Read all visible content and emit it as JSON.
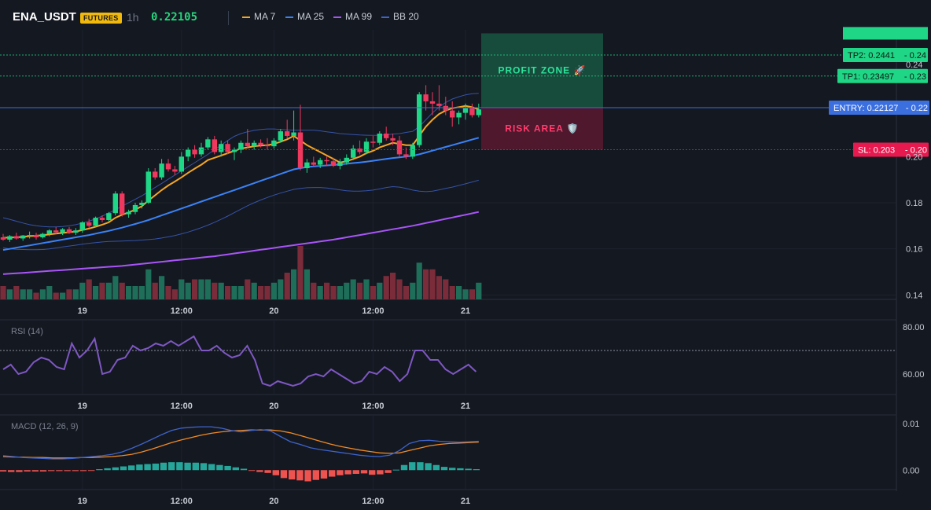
{
  "header": {
    "symbol": "ENA_USDT",
    "badge": "FUTURES",
    "timeframe": "1h",
    "price": "0.22105",
    "indicators": [
      {
        "label": "MA 7",
        "color": "#f5a623"
      },
      {
        "label": "MA 25",
        "color": "#3b82f6"
      },
      {
        "label": "MA 99",
        "color": "#a855f7"
      },
      {
        "label": "BB 20",
        "color": "#3f63c9"
      }
    ]
  },
  "colors": {
    "background": "#141821",
    "up": "#1fd586",
    "down": "#f0385f",
    "vol_up": "#1e6e5a",
    "vol_down": "#7a2c3a",
    "ma7": "#f5a623",
    "ma25": "#3b82f6",
    "ma99": "#a855f7",
    "bb": "#3f63c9",
    "rsi": "#7e57c2",
    "macd": "#3f63c9",
    "signal": "#f08a24",
    "hist_up": "#26a69a",
    "hist_down": "#ef5350",
    "tp": "#1fd586",
    "entry": "#3b6fe0",
    "sl": "#e8194f"
  },
  "chart_data": {
    "type": "candlestick",
    "x_ticks": [
      "19",
      "12:00",
      "20",
      "12:00",
      "21"
    ],
    "price_axis": {
      "ticks": [
        0.14,
        0.16,
        0.18,
        0.2,
        0.22,
        0.23,
        0.24
      ],
      "range": [
        0.135,
        0.255
      ]
    },
    "candles": [
      [
        0.165,
        0.1665,
        0.1635,
        0.164
      ],
      [
        0.164,
        0.166,
        0.163,
        0.1655
      ],
      [
        0.1655,
        0.167,
        0.164,
        0.1645
      ],
      [
        0.1645,
        0.166,
        0.1635,
        0.1658
      ],
      [
        0.1658,
        0.1675,
        0.1645,
        0.166
      ],
      [
        0.166,
        0.167,
        0.164,
        0.165
      ],
      [
        0.165,
        0.167,
        0.1645,
        0.1665
      ],
      [
        0.1665,
        0.1685,
        0.1655,
        0.168
      ],
      [
        0.168,
        0.1695,
        0.1665,
        0.1672
      ],
      [
        0.1672,
        0.169,
        0.166,
        0.1685
      ],
      [
        0.1685,
        0.1695,
        0.1665,
        0.167
      ],
      [
        0.167,
        0.169,
        0.166,
        0.168
      ],
      [
        0.168,
        0.172,
        0.167,
        0.1715
      ],
      [
        0.1715,
        0.173,
        0.169,
        0.17
      ],
      [
        0.17,
        0.174,
        0.1695,
        0.1735
      ],
      [
        0.1735,
        0.1745,
        0.1715,
        0.1725
      ],
      [
        0.1725,
        0.176,
        0.172,
        0.1755
      ],
      [
        0.1755,
        0.185,
        0.1745,
        0.184
      ],
      [
        0.184,
        0.185,
        0.174,
        0.175
      ],
      [
        0.175,
        0.177,
        0.1735,
        0.176
      ],
      [
        0.176,
        0.18,
        0.175,
        0.179
      ],
      [
        0.179,
        0.181,
        0.1775,
        0.18
      ],
      [
        0.18,
        0.195,
        0.1795,
        0.1935
      ],
      [
        0.1935,
        0.195,
        0.19,
        0.191
      ],
      [
        0.191,
        0.199,
        0.19,
        0.197
      ],
      [
        0.197,
        0.199,
        0.1935,
        0.1945
      ],
      [
        0.1945,
        0.196,
        0.192,
        0.1935
      ],
      [
        0.1935,
        0.202,
        0.1925,
        0.2
      ],
      [
        0.2,
        0.204,
        0.198,
        0.203
      ],
      [
        0.203,
        0.205,
        0.1995,
        0.201
      ],
      [
        0.201,
        0.206,
        0.2,
        0.204
      ],
      [
        0.204,
        0.2085,
        0.203,
        0.2075
      ],
      [
        0.2075,
        0.209,
        0.201,
        0.202
      ],
      [
        0.202,
        0.207,
        0.2,
        0.2055
      ],
      [
        0.2055,
        0.207,
        0.201,
        0.202
      ],
      [
        0.202,
        0.204,
        0.1985,
        0.203
      ],
      [
        0.203,
        0.207,
        0.2015,
        0.206
      ],
      [
        0.206,
        0.212,
        0.204,
        0.2045
      ],
      [
        0.2045,
        0.207,
        0.203,
        0.206
      ],
      [
        0.206,
        0.2075,
        0.204,
        0.205
      ],
      [
        0.205,
        0.208,
        0.203,
        0.2045
      ],
      [
        0.2045,
        0.208,
        0.2035,
        0.207
      ],
      [
        0.207,
        0.212,
        0.206,
        0.211
      ],
      [
        0.211,
        0.216,
        0.208,
        0.209
      ],
      [
        0.209,
        0.22,
        0.207,
        0.2105
      ],
      [
        0.2105,
        0.2225,
        0.194,
        0.195
      ],
      [
        0.195,
        0.199,
        0.193,
        0.1975
      ],
      [
        0.1975,
        0.2,
        0.1955,
        0.1965
      ],
      [
        0.1965,
        0.1995,
        0.195,
        0.1985
      ],
      [
        0.1985,
        0.2,
        0.196,
        0.198
      ],
      [
        0.198,
        0.1995,
        0.1955,
        0.196
      ],
      [
        0.196,
        0.199,
        0.1945,
        0.1975
      ],
      [
        0.1975,
        0.201,
        0.1965,
        0.1995
      ],
      [
        0.1995,
        0.205,
        0.1985,
        0.2035
      ],
      [
        0.2035,
        0.207,
        0.201,
        0.202
      ],
      [
        0.202,
        0.208,
        0.201,
        0.2065
      ],
      [
        0.2065,
        0.209,
        0.204,
        0.206
      ],
      [
        0.206,
        0.211,
        0.205,
        0.21
      ],
      [
        0.21,
        0.213,
        0.207,
        0.208
      ],
      [
        0.208,
        0.21,
        0.205,
        0.207
      ],
      [
        0.207,
        0.209,
        0.2,
        0.201
      ],
      [
        0.201,
        0.204,
        0.199,
        0.2
      ],
      [
        0.2,
        0.206,
        0.199,
        0.205
      ],
      [
        0.205,
        0.228,
        0.204,
        0.227
      ],
      [
        0.227,
        0.231,
        0.22,
        0.224
      ],
      [
        0.224,
        0.228,
        0.218,
        0.223
      ],
      [
        0.223,
        0.231,
        0.22,
        0.222
      ],
      [
        0.222,
        0.226,
        0.218,
        0.22
      ],
      [
        0.22,
        0.224,
        0.213,
        0.217
      ],
      [
        0.217,
        0.22,
        0.214,
        0.219
      ],
      [
        0.219,
        0.223,
        0.216,
        0.221
      ],
      [
        0.221,
        0.223,
        0.217,
        0.218
      ],
      [
        0.218,
        0.223,
        0.217,
        0.2205
      ]
    ],
    "volume": [
      4,
      3,
      4,
      3,
      3,
      2,
      3,
      4,
      2,
      2,
      3,
      3,
      5,
      6,
      4,
      5,
      5,
      7,
      5,
      4,
      4,
      4,
      9,
      5,
      7,
      4,
      3,
      6,
      5,
      6,
      6,
      6,
      5,
      5,
      4,
      4,
      4,
      6,
      5,
      4,
      4,
      5,
      6,
      8,
      9,
      16,
      9,
      5,
      4,
      5,
      4,
      4,
      5,
      6,
      5,
      6,
      4,
      5,
      7,
      8,
      6,
      4,
      5,
      11,
      9,
      9,
      7,
      6,
      4,
      4,
      3,
      3,
      5
    ],
    "ma7": [
      0.1648,
      0.1649,
      0.165,
      0.1652,
      0.1655,
      0.1657,
      0.1659,
      0.1663,
      0.1666,
      0.1669,
      0.1672,
      0.1675,
      0.1682,
      0.1688,
      0.1696,
      0.1705,
      0.1715,
      0.1735,
      0.1748,
      0.1758,
      0.177,
      0.1785,
      0.181,
      0.1832,
      0.1855,
      0.1875,
      0.1892,
      0.191,
      0.193,
      0.1948,
      0.1965,
      0.1985,
      0.1995,
      0.2005,
      0.2015,
      0.2025,
      0.2035,
      0.204,
      0.2045,
      0.2048,
      0.205,
      0.2055,
      0.2065,
      0.2075,
      0.209,
      0.207,
      0.205,
      0.2035,
      0.202,
      0.2005,
      0.199,
      0.1975,
      0.198,
      0.199,
      0.2,
      0.2015,
      0.2025,
      0.204,
      0.205,
      0.206,
      0.2055,
      0.205,
      0.205,
      0.209,
      0.213,
      0.216,
      0.2185,
      0.22,
      0.221,
      0.2215,
      0.222,
      0.2215,
      0.2205
    ],
    "ma25": [
      0.1595,
      0.16,
      0.1605,
      0.161,
      0.1615,
      0.162,
      0.1625,
      0.163,
      0.1635,
      0.164,
      0.1645,
      0.165,
      0.1655,
      0.166,
      0.1666,
      0.1672,
      0.1678,
      0.1685,
      0.1692,
      0.17,
      0.1708,
      0.1716,
      0.1725,
      0.1735,
      0.1745,
      0.1755,
      0.1765,
      0.1775,
      0.1785,
      0.1795,
      0.1805,
      0.1815,
      0.1825,
      0.1835,
      0.1845,
      0.1855,
      0.1865,
      0.1875,
      0.1885,
      0.1895,
      0.1905,
      0.1915,
      0.1925,
      0.1935,
      0.1945,
      0.195,
      0.1955,
      0.1958,
      0.196,
      0.1962,
      0.1964,
      0.1966,
      0.1969,
      0.1972,
      0.1975,
      0.1978,
      0.1982,
      0.1986,
      0.199,
      0.1994,
      0.1997,
      0.2,
      0.2004,
      0.201,
      0.2018,
      0.2026,
      0.2034,
      0.2042,
      0.205,
      0.2058,
      0.2066,
      0.2074,
      0.2082
    ],
    "ma99": [
      0.149,
      0.1492,
      0.1494,
      0.1496,
      0.1498,
      0.15,
      0.1502,
      0.1504,
      0.1506,
      0.1508,
      0.151,
      0.1512,
      0.1514,
      0.1516,
      0.1518,
      0.152,
      0.1522,
      0.1524,
      0.1526,
      0.1529,
      0.1532,
      0.1535,
      0.1538,
      0.1541,
      0.1544,
      0.1547,
      0.155,
      0.1553,
      0.1556,
      0.1559,
      0.1562,
      0.1565,
      0.1568,
      0.1572,
      0.1576,
      0.158,
      0.1584,
      0.1588,
      0.1592,
      0.1596,
      0.16,
      0.1604,
      0.1608,
      0.1612,
      0.1616,
      0.162,
      0.1624,
      0.1628,
      0.1632,
      0.1636,
      0.164,
      0.1645,
      0.165,
      0.1655,
      0.166,
      0.1665,
      0.167,
      0.1675,
      0.168,
      0.1685,
      0.169,
      0.1695,
      0.17,
      0.1706,
      0.1712,
      0.1718,
      0.1724,
      0.173,
      0.1736,
      0.1742,
      0.1748,
      0.1754,
      0.176
    ],
    "bb_upper": [
      0.1735,
      0.1728,
      0.172,
      0.1712,
      0.1705,
      0.17,
      0.1697,
      0.1695,
      0.1695,
      0.1697,
      0.17,
      0.1705,
      0.1712,
      0.172,
      0.173,
      0.1742,
      0.1755,
      0.177,
      0.1785,
      0.18,
      0.1815,
      0.183,
      0.1848,
      0.1866,
      0.1884,
      0.1902,
      0.192,
      0.1938,
      0.1956,
      0.1974,
      0.1992,
      0.201,
      0.203,
      0.205,
      0.207,
      0.2088,
      0.21,
      0.2108,
      0.2114,
      0.2118,
      0.212,
      0.212,
      0.2118,
      0.2116,
      0.2115,
      0.2115,
      0.2115,
      0.2115,
      0.2112,
      0.2108,
      0.2104,
      0.21,
      0.2098,
      0.2096,
      0.2094,
      0.2093,
      0.2092,
      0.2093,
      0.2095,
      0.2098,
      0.21,
      0.2105,
      0.211,
      0.213,
      0.216,
      0.219,
      0.2215,
      0.2235,
      0.225,
      0.226,
      0.2268,
      0.2273,
      0.2275
    ],
    "bb_lower": [
      0.1605,
      0.16,
      0.1598,
      0.1597,
      0.1596,
      0.1596,
      0.1597,
      0.16,
      0.1604,
      0.1608,
      0.1612,
      0.1616,
      0.162,
      0.1624,
      0.1627,
      0.163,
      0.1632,
      0.1633,
      0.1634,
      0.1635,
      0.1636,
      0.1638,
      0.164,
      0.1643,
      0.1647,
      0.1652,
      0.1658,
      0.1665,
      0.1673,
      0.1682,
      0.1692,
      0.1703,
      0.1715,
      0.1728,
      0.1742,
      0.1757,
      0.1772,
      0.1787,
      0.18,
      0.1812,
      0.1823,
      0.1833,
      0.1842,
      0.185,
      0.1858,
      0.1862,
      0.1865,
      0.1866,
      0.1866,
      0.1864,
      0.186,
      0.1856,
      0.1852,
      0.185,
      0.185,
      0.1852,
      0.1855,
      0.186,
      0.1866,
      0.187,
      0.1868,
      0.1862,
      0.1855,
      0.185,
      0.1848,
      0.185,
      0.1856,
      0.1862,
      0.1868,
      0.1875,
      0.1882,
      0.189,
      0.1898
    ],
    "levels": {
      "tp3": {
        "value": 0.2535,
        "color": "#1fd586"
      },
      "tp2": {
        "label": "TP2: 0.2441",
        "axis": "0.24",
        "value": 0.2441,
        "color": "#1fd586"
      },
      "tp1": {
        "label": "TP1: 0.23497",
        "axis": "0.23",
        "value": 0.23497,
        "color": "#1fd586"
      },
      "entry": {
        "label": "ENTRY: 0.22127",
        "axis": "0.22",
        "value": 0.22127,
        "color": "#3b6fe0"
      },
      "sl": {
        "label": "SL: 0.203",
        "axis": "0.20",
        "value": 0.203,
        "color": "#e8194f"
      }
    },
    "zones": {
      "profit": {
        "label": "PROFIT ZONE 🚀",
        "from": 0.22127,
        "to": 0.2535
      },
      "risk": {
        "label": "RISK AREA 🛡️",
        "from": 0.203,
        "to": 0.22127
      }
    },
    "rsi": {
      "title": "RSI (14)",
      "ticks": [
        60.0,
        80.0
      ],
      "tick_labels": [
        "60.00",
        "80.00"
      ],
      "overbought": 70,
      "range": [
        52,
        82
      ],
      "values": [
        62,
        64,
        60,
        61,
        65,
        67,
        66,
        63,
        62,
        73,
        67,
        70,
        75,
        60,
        61,
        66,
        67,
        72,
        70,
        71,
        73,
        72,
        74,
        72,
        74,
        76,
        70,
        70,
        72,
        69,
        67,
        68,
        72,
        66,
        56,
        55,
        57,
        56,
        55,
        56,
        59,
        60,
        59,
        62,
        60,
        58,
        56,
        57,
        61,
        60,
        63,
        61,
        57,
        60,
        70,
        70,
        66,
        66,
        62,
        60,
        62,
        64,
        61
      ]
    },
    "macd": {
      "title": "MACD (12, 26, 9)",
      "ticks": [
        0.0,
        0.01
      ],
      "tick_labels": [
        "0.00",
        "0.01"
      ],
      "range": [
        -0.004,
        0.0115
      ],
      "macd_line": [
        0.0031,
        0.0029,
        0.0027,
        0.0026,
        0.0025,
        0.0024,
        0.0024,
        0.0025,
        0.0027,
        0.0029,
        0.0031,
        0.0034,
        0.0039,
        0.0047,
        0.0056,
        0.0066,
        0.0076,
        0.0085,
        0.009,
        0.0092,
        0.0093,
        0.0093,
        0.009,
        0.0085,
        0.0082,
        0.0085,
        0.0087,
        0.0084,
        0.0072,
        0.0061,
        0.0055,
        0.0048,
        0.0044,
        0.0041,
        0.0038,
        0.0035,
        0.0032,
        0.003,
        0.0029,
        0.0032,
        0.0042,
        0.0057,
        0.0063,
        0.0064,
        0.0062,
        0.0061,
        0.006,
        0.0061,
        0.0062
      ],
      "signal_line": [
        0.0029,
        0.0028,
        0.0028,
        0.0027,
        0.0027,
        0.0026,
        0.0026,
        0.0026,
        0.0027,
        0.0027,
        0.0028,
        0.0029,
        0.0031,
        0.0034,
        0.0039,
        0.0045,
        0.0052,
        0.0059,
        0.0065,
        0.007,
        0.0075,
        0.0079,
        0.0082,
        0.0084,
        0.0085,
        0.0086,
        0.0086,
        0.0086,
        0.0084,
        0.008,
        0.0074,
        0.0068,
        0.0062,
        0.0056,
        0.0051,
        0.0047,
        0.0043,
        0.004,
        0.0037,
        0.0036,
        0.0037,
        0.0042,
        0.0047,
        0.0052,
        0.0055,
        0.0057,
        0.0058,
        0.0059,
        0.006
      ],
      "histogram": [
        -0.0003,
        -0.0004,
        -0.0004,
        -0.0003,
        -0.0003,
        -0.0003,
        -0.0002,
        -0.0002,
        -0.0002,
        -0.0002,
        -0.0002,
        -0.0001,
        0.0002,
        0.0004,
        0.0006,
        0.0008,
        0.001,
        0.0012,
        0.0013,
        0.0014,
        0.0016,
        0.0017,
        0.0017,
        0.0016,
        0.0016,
        0.0015,
        0.0013,
        0.0011,
        0.0009,
        0.0006,
        0.0003,
        -0.0001,
        -0.0004,
        -0.0006,
        -0.0011,
        -0.0017,
        -0.002,
        -0.0022,
        -0.0024,
        -0.0021,
        -0.0018,
        -0.0014,
        -0.0011,
        -0.0009,
        -0.0008,
        -0.0007,
        -0.001,
        -0.0009,
        -0.0006,
        0.0001,
        0.0011,
        0.0017,
        0.0017,
        0.0015,
        0.0011,
        0.0007,
        0.0005,
        0.0004,
        0.0003,
        0.0002
      ]
    }
  }
}
